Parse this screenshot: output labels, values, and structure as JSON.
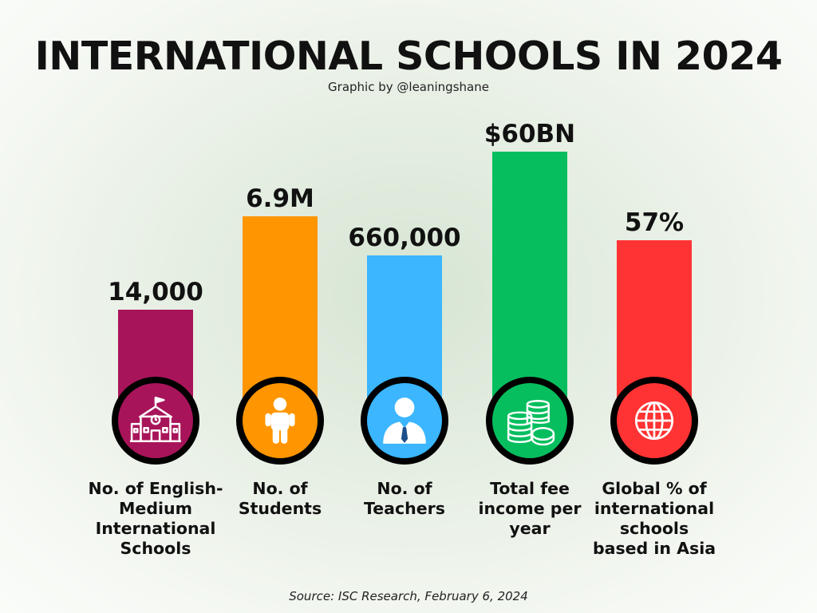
{
  "title": "INTERNATIONAL SCHOOLS IN 2024",
  "credit": "Graphic by @leaningshane",
  "source": "Source: ISC Research, February 6, 2024",
  "chart_data": {
    "type": "bar",
    "title": "INTERNATIONAL SCHOOLS IN 2024",
    "categories": [
      "No. of English-Medium International Schools",
      "No. of Students",
      "No. of Teachers",
      "Total fee income per year",
      "Global % of international schools based in Asia"
    ],
    "values": [
      14000,
      6900000,
      660000,
      60000000000,
      57
    ],
    "value_labels": [
      "14,000",
      "6.9M",
      "660,000",
      "$60BN",
      "57%"
    ],
    "colors": [
      "#a8145a",
      "#ff9500",
      "#3bb6ff",
      "#06be5e",
      "#ff3333"
    ],
    "icons": [
      "school-building-icon",
      "child-icon",
      "teacher-icon",
      "coins-icon",
      "globe-icon"
    ],
    "label_lines": [
      [
        "No. of English-",
        "Medium",
        "International",
        "Schools"
      ],
      [
        "No. of",
        "Students"
      ],
      [
        "No. of",
        "Teachers"
      ],
      [
        "Total fee",
        "income per",
        "year"
      ],
      [
        "Global % of",
        "international",
        "schools",
        "based in Asia"
      ]
    ]
  }
}
